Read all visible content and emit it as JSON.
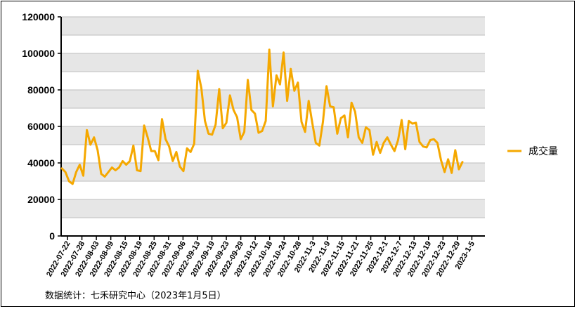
{
  "chart_data": {
    "type": "line",
    "title": "",
    "xlabel": "",
    "ylabel": "",
    "ylim": [
      0,
      120000
    ],
    "yticks": [
      0,
      20000,
      40000,
      60000,
      80000,
      100000,
      120000
    ],
    "ytick_labels": [
      "0",
      "20000",
      "40000",
      "60000",
      "80000",
      "100000",
      "120000"
    ],
    "xtick_labels": [
      "2022-07-22",
      "2022-07-28",
      "2022-08-03",
      "2022-08-09",
      "2022-08-15",
      "2022-08-19",
      "2022-08-25",
      "2022-08-31",
      "2022-09-06",
      "2022-09-13",
      "2022-09-19",
      "2022-09-23",
      "2022-09-29",
      "2022-10-12",
      "2022-10-18",
      "2022-10-24",
      "2022-10-28",
      "2022-11-3",
      "2022-11-9",
      "2022-11-15",
      "2022-11-21",
      "2022-11-25",
      "2022-12-1",
      "2022-12-7",
      "2022-12-13",
      "2022-12-19",
      "2022-12-23",
      "2022-12-29",
      "2023-1-5"
    ],
    "grid": true,
    "grid_style": "alternating horizontal bands",
    "legend_position": "right",
    "series": [
      {
        "name": "成交量",
        "color": "#F5A800",
        "values": [
          37000,
          35000,
          30000,
          28500,
          35000,
          39000,
          33000,
          58000,
          50000,
          54000,
          47000,
          34000,
          32500,
          35000,
          37500,
          36000,
          37500,
          41000,
          39000,
          41000,
          49500,
          36000,
          35500,
          60500,
          54000,
          46500,
          46500,
          41500,
          64000,
          53000,
          49000,
          41000,
          46000,
          38000,
          35500,
          48000,
          46000,
          50500,
          90500,
          81000,
          63000,
          56000,
          55500,
          61000,
          80500,
          59000,
          62000,
          77000,
          69000,
          65000,
          53000,
          57000,
          85500,
          69000,
          67000,
          56500,
          57500,
          63000,
          102000,
          71000,
          88000,
          83000,
          100500,
          74000,
          91500,
          79500,
          84000,
          62500,
          57000,
          74000,
          62000,
          51000,
          49500,
          62500,
          82000,
          71000,
          70500,
          56000,
          64500,
          66000,
          54000,
          73000,
          68000,
          54000,
          51000,
          59500,
          58000,
          44500,
          51500,
          45500,
          51000,
          54000,
          50000,
          46500,
          52500,
          63500,
          47500,
          63000,
          61500,
          62000,
          51500,
          49000,
          48500,
          52500,
          53000,
          51000,
          41500,
          35000,
          42000,
          34500,
          47000,
          36500,
          40500
        ]
      }
    ]
  },
  "legend": {
    "label": "成交量"
  },
  "source_note": "数据统计：七禾研究中心（2023年1月5日）"
}
